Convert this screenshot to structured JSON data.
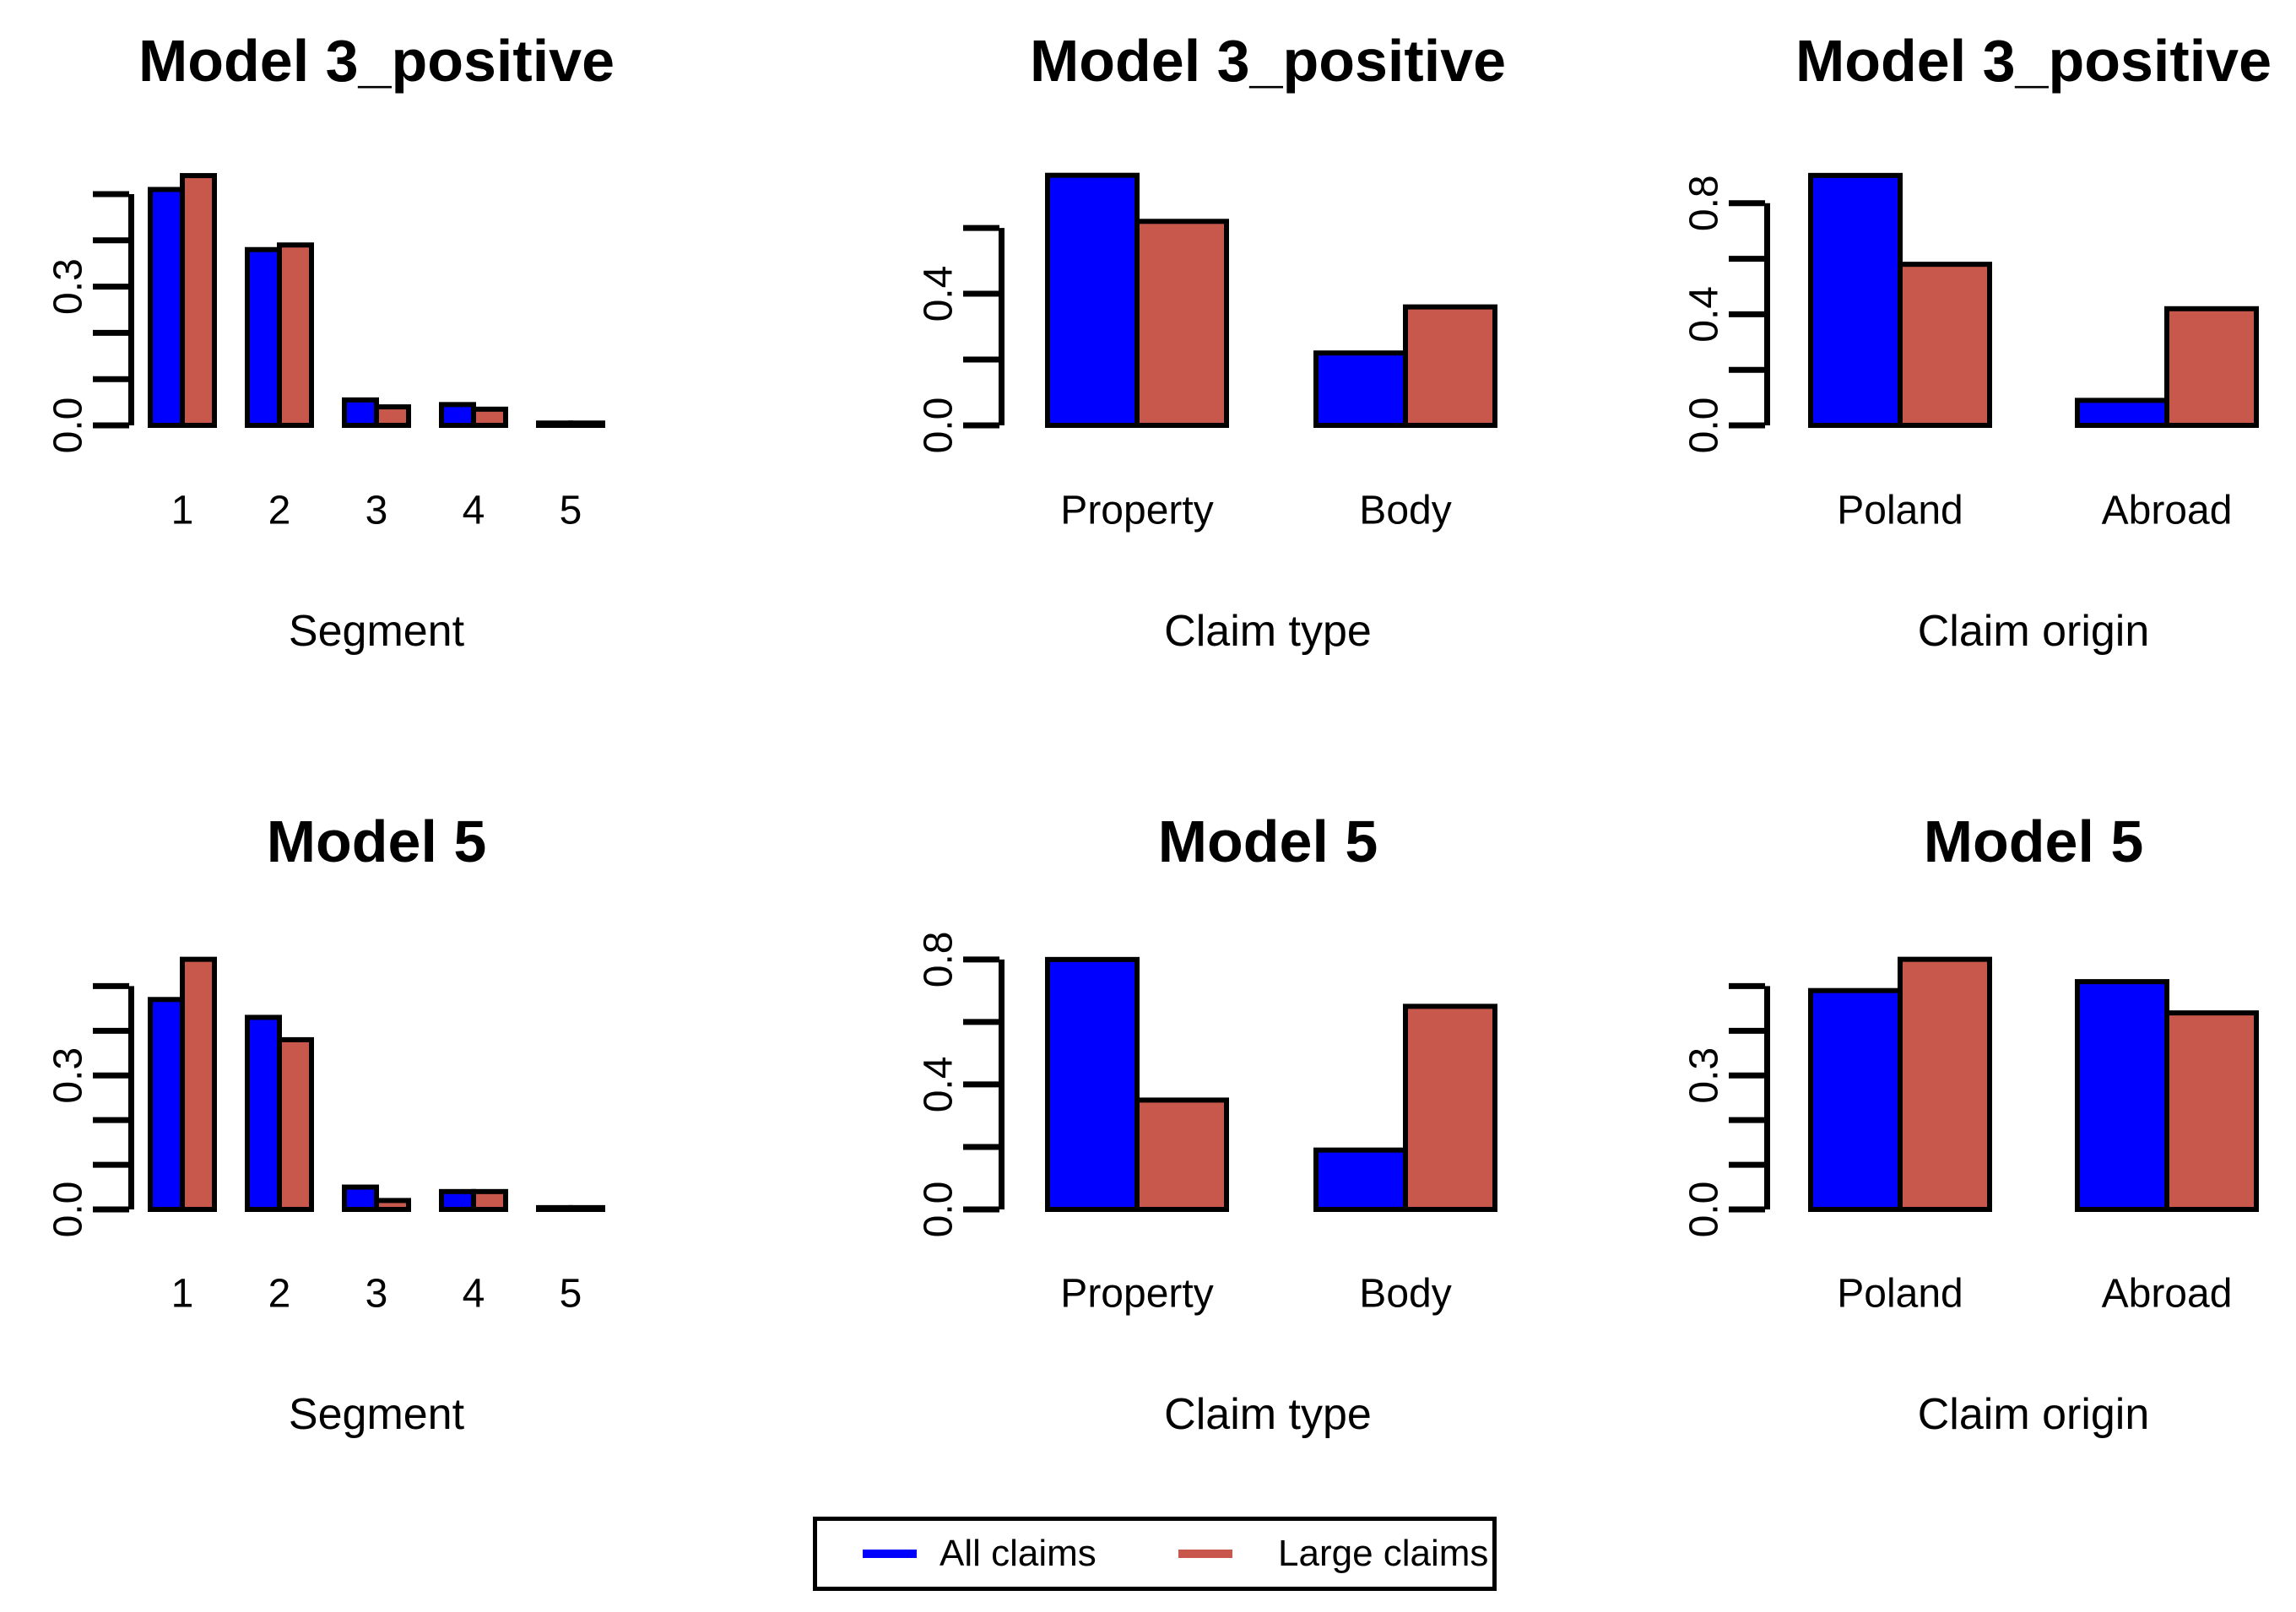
{
  "figure": {
    "background": "#FFFFFF",
    "rows": 2,
    "cols": 3,
    "description_colors": {
      "all_claims": "#0000FF",
      "large_claims": "#C8584B",
      "axis": "#000000"
    }
  },
  "legend": {
    "position": "bottom-center",
    "items": [
      {
        "label": "All claims",
        "color": "#0000FF"
      },
      {
        "label": "Large claims",
        "color": "#C8584B"
      }
    ]
  },
  "chart_data": [
    {
      "id": "model3positive-segment",
      "type": "bar",
      "title": "Model 3_positive",
      "xlabel": "Segment",
      "ylabel": "",
      "categories": [
        "1",
        "2",
        "3",
        "4",
        "5"
      ],
      "series": [
        {
          "name": "All claims",
          "color": "#0000FF",
          "values": [
            0.51,
            0.38,
            0.055,
            0.045,
            0.005
          ]
        },
        {
          "name": "Large claims",
          "color": "#C8584B",
          "values": [
            0.54,
            0.39,
            0.04,
            0.035,
            0.005
          ]
        }
      ],
      "ylim": [
        0,
        0.562
      ],
      "yticks": [
        0,
        0.1,
        0.2,
        0.3,
        0.4,
        0.5
      ],
      "labeled_yticks": [
        0.0,
        0.3
      ],
      "grid": false
    },
    {
      "id": "model3positive-claimtype",
      "type": "bar",
      "title": "Model 3_positive",
      "xlabel": "Claim type",
      "ylabel": "",
      "categories": [
        "Property",
        "Body"
      ],
      "series": [
        {
          "name": "All claims",
          "color": "#0000FF",
          "values": [
            0.76,
            0.22
          ]
        },
        {
          "name": "Large claims",
          "color": "#C8584B",
          "values": [
            0.62,
            0.36
          ]
        }
      ],
      "ylim": [
        0,
        0.79
      ],
      "yticks": [
        0,
        0.2,
        0.4,
        0.6
      ],
      "labeled_yticks": [
        0.0,
        0.4
      ],
      "grid": false
    },
    {
      "id": "model3positive-claimorigin",
      "type": "bar",
      "title": "Model 3_positive",
      "xlabel": "Claim origin",
      "ylabel": "",
      "categories": [
        "Poland",
        "Abroad"
      ],
      "series": [
        {
          "name": "All claims",
          "color": "#0000FF",
          "values": [
            0.9,
            0.09
          ]
        },
        {
          "name": "Large claims",
          "color": "#C8584B",
          "values": [
            0.58,
            0.42
          ]
        }
      ],
      "ylim": [
        0,
        0.936
      ],
      "yticks": [
        0,
        0.2,
        0.4,
        0.6,
        0.8
      ],
      "labeled_yticks": [
        0.0,
        0.4,
        0.8
      ],
      "grid": false
    },
    {
      "id": "model5-segment",
      "type": "bar",
      "title": "Model 5",
      "xlabel": "Segment",
      "ylabel": "",
      "categories": [
        "1",
        "2",
        "3",
        "4",
        "5"
      ],
      "series": [
        {
          "name": "All claims",
          "color": "#0000FF",
          "values": [
            0.47,
            0.43,
            0.05,
            0.04,
            0.004
          ]
        },
        {
          "name": "Large claims",
          "color": "#C8584B",
          "values": [
            0.56,
            0.38,
            0.02,
            0.04,
            0.004
          ]
        }
      ],
      "ylim": [
        0,
        0.582
      ],
      "yticks": [
        0,
        0.1,
        0.2,
        0.3,
        0.4,
        0.5
      ],
      "labeled_yticks": [
        0.0,
        0.3
      ],
      "grid": false
    },
    {
      "id": "model5-claimtype",
      "type": "bar",
      "title": "Model 5",
      "xlabel": "Claim type",
      "ylabel": "",
      "categories": [
        "Property",
        "Body"
      ],
      "series": [
        {
          "name": "All claims",
          "color": "#0000FF",
          "values": [
            0.8,
            0.19
          ]
        },
        {
          "name": "Large claims",
          "color": "#C8584B",
          "values": [
            0.35,
            0.65
          ]
        }
      ],
      "ylim": [
        0,
        0.832
      ],
      "yticks": [
        0,
        0.2,
        0.4,
        0.6,
        0.8
      ],
      "labeled_yticks": [
        0.0,
        0.4,
        0.8
      ],
      "grid": false
    },
    {
      "id": "model5-claimorigin",
      "type": "bar",
      "title": "Model 5",
      "xlabel": "Claim origin",
      "ylabel": "",
      "categories": [
        "Poland",
        "Abroad"
      ],
      "series": [
        {
          "name": "All claims",
          "color": "#0000FF",
          "values": [
            0.49,
            0.51
          ]
        },
        {
          "name": "Large claims",
          "color": "#C8584B",
          "values": [
            0.56,
            0.44
          ]
        }
      ],
      "ylim": [
        0,
        0.582
      ],
      "yticks": [
        0,
        0.1,
        0.2,
        0.3,
        0.4,
        0.5
      ],
      "labeled_yticks": [
        0.0,
        0.3
      ],
      "grid": false
    }
  ]
}
